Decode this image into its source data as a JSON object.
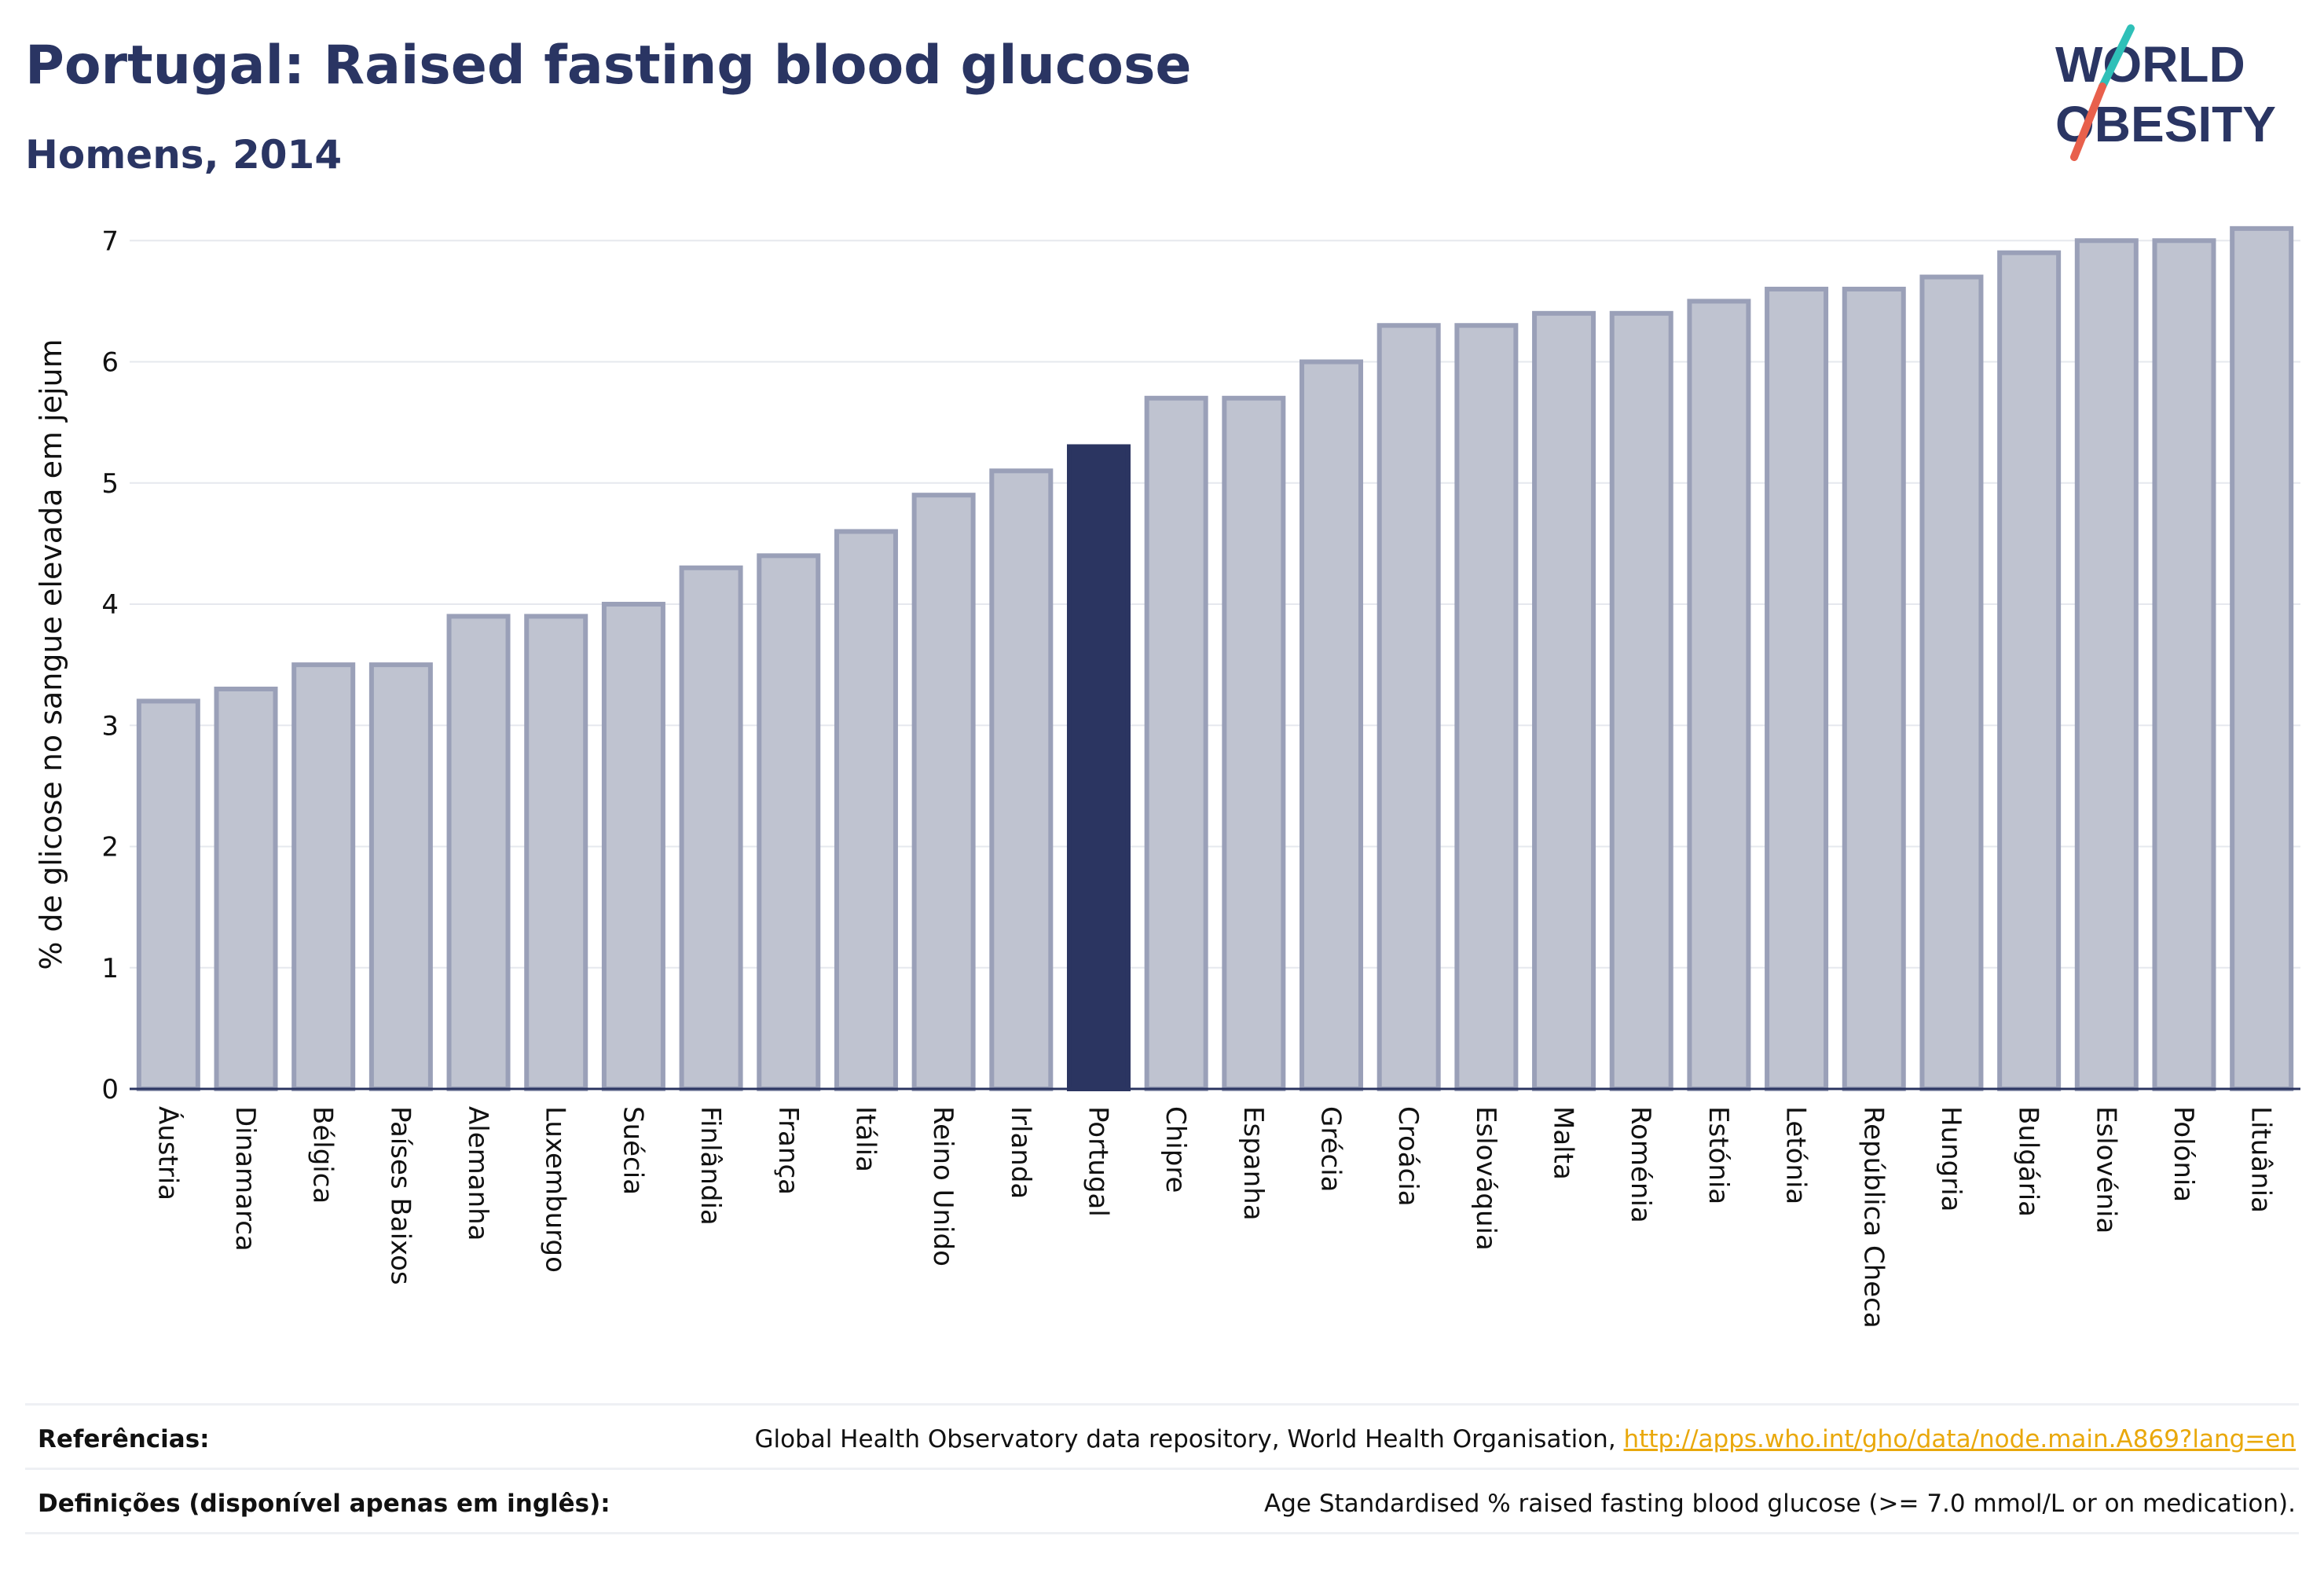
{
  "header": {
    "title": "Portugal: Raised fasting blood glucose",
    "subtitle": "Homens, 2014"
  },
  "logo": {
    "line1": "WORLD",
    "line2": "OBESITY",
    "colors": {
      "text": "#2a3563",
      "slash_teal": "#2fc0b8",
      "slash_red": "#e8604c"
    }
  },
  "chart_data": {
    "type": "bar",
    "title": "",
    "xlabel": "",
    "ylabel": "% de glicose no sangue elevada em jejum",
    "ylim": [
      0,
      7.3
    ],
    "yticks": [
      0,
      1,
      2,
      3,
      4,
      5,
      6,
      7
    ],
    "grid": true,
    "highlight": "Portugal",
    "colors": {
      "bar": "#bfc3d0",
      "bar_stroke": "#9aa0b8",
      "highlight": "#2b3561",
      "grid": "#e6e8ee",
      "axis": "#2b3561"
    },
    "categories": [
      "Áustria",
      "Dinamarca",
      "Bélgica",
      "Países Baixos",
      "Alemanha",
      "Luxemburgo",
      "Suécia",
      "Finlândia",
      "França",
      "Itália",
      "Reino Unido",
      "Irlanda",
      "Portugal",
      "Chipre",
      "Espanha",
      "Grécia",
      "Croácia",
      "Eslováquia",
      "Malta",
      "Roménia",
      "Estónia",
      "Letónia",
      "República Checa",
      "Hungria",
      "Bulgária",
      "Eslovénia",
      "Polónia",
      "Lituânia"
    ],
    "values": [
      3.2,
      3.3,
      3.5,
      3.5,
      3.9,
      3.9,
      4.0,
      4.3,
      4.4,
      4.6,
      4.9,
      5.1,
      5.3,
      5.7,
      5.7,
      6.0,
      6.3,
      6.3,
      6.4,
      6.4,
      6.5,
      6.6,
      6.6,
      6.7,
      6.9,
      7.0,
      7.0,
      7.1
    ]
  },
  "footer": {
    "references_label": "Referências:",
    "references_text": "Global Health Observatory data repository, World Health Organisation, ",
    "references_link": "http://apps.who.int/gho/data/node.main.A869?lang=en",
    "definitions_label": "Definições (disponível apenas em inglês):",
    "definitions_text": "Age Standardised % raised fasting blood glucose (>= 7.0 mmol/L or on medication)."
  }
}
